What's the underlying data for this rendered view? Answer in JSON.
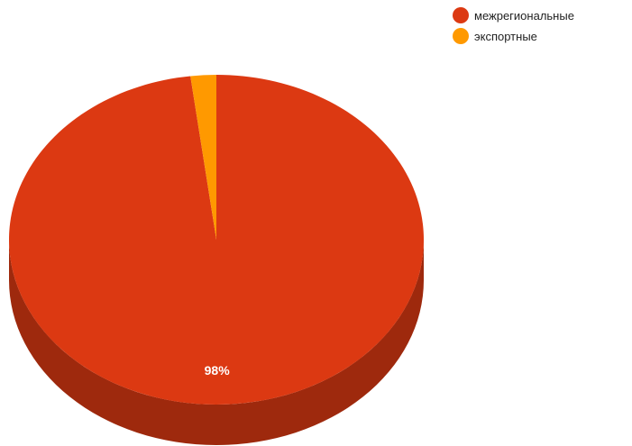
{
  "chart_data": {
    "type": "pie",
    "title": "",
    "style": "3d",
    "slices": [
      {
        "label": "межрегиональные",
        "value": 98,
        "color": "#DC3912",
        "display_label": "98%"
      },
      {
        "label": "экспортные",
        "value": 2,
        "color": "#FF9900",
        "display_label": ""
      }
    ],
    "legend_position": "top-right"
  }
}
